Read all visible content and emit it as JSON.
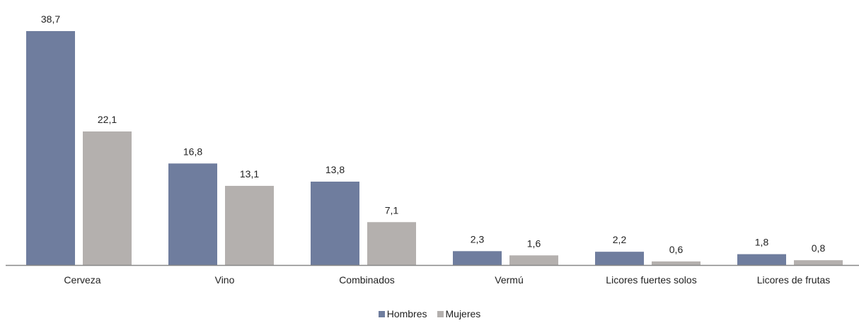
{
  "chart_data": {
    "type": "bar",
    "categories": [
      "Cerveza",
      "Vino",
      "Combinados",
      "Vermú",
      "Licores fuertes solos",
      "Licores de frutas"
    ],
    "series": [
      {
        "name": "Hombres",
        "color": "#6f7d9e",
        "values": [
          38.7,
          16.8,
          13.8,
          2.3,
          2.2,
          1.8
        ],
        "labels": [
          "38,7",
          "16,8",
          "13,8",
          "2,3",
          "2,2",
          "1,8"
        ]
      },
      {
        "name": "Mujeres",
        "color": "#b4b0ae",
        "values": [
          22.1,
          13.1,
          7.1,
          1.6,
          0.6,
          0.8
        ],
        "labels": [
          "22,1",
          "13,1",
          "7,1",
          "1,6",
          "0,6",
          "0,8"
        ]
      }
    ],
    "ylim": [
      0,
      38.7
    ],
    "grid": false,
    "legend_position": "bottom-center",
    "legend_labels": [
      "Hombres",
      "Mujeres"
    ]
  }
}
